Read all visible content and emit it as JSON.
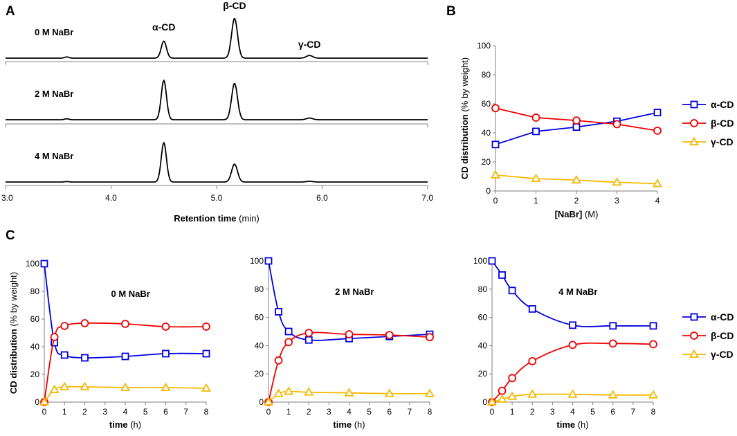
{
  "panels": {
    "A": "A",
    "B": "B",
    "C": "C"
  },
  "colors": {
    "alpha": "#0000dd",
    "beta": "#ee0000",
    "gamma": "#f5b800",
    "axis": "#7f7f7f",
    "trace": "#000000"
  },
  "legend": [
    "α-CD",
    "β-CD",
    "γ-CD"
  ],
  "chart_data": [
    {
      "id": "A",
      "type": "line",
      "title": "",
      "xlabel_bold": "Retention time",
      "xlabel_unit": "(min)",
      "ylabel": "",
      "xlim": [
        3.0,
        7.0
      ],
      "x_ticks": [
        "3.0",
        "4.0",
        "5.0",
        "6.0",
        "7.0"
      ],
      "peak_labels": [
        {
          "text": "α-CD",
          "x": 4.5
        },
        {
          "text": "β-CD",
          "x": 5.17
        },
        {
          "text": "γ-CD",
          "x": 5.88
        }
      ],
      "traces": [
        {
          "name": "0 M NaBr",
          "peaks": [
            {
              "x": 3.58,
              "h": 0.025
            },
            {
              "x": 4.5,
              "h": 0.35
            },
            {
              "x": 5.17,
              "h": 0.82
            },
            {
              "x": 5.88,
              "h": 0.055
            }
          ]
        },
        {
          "name": "2 M NaBr",
          "peaks": [
            {
              "x": 3.58,
              "h": 0.02
            },
            {
              "x": 4.5,
              "h": 0.81
            },
            {
              "x": 5.17,
              "h": 0.75
            },
            {
              "x": 5.88,
              "h": 0.035
            }
          ]
        },
        {
          "name": "4 M NaBr",
          "peaks": [
            {
              "x": 3.58,
              "h": 0.01
            },
            {
              "x": 4.5,
              "h": 0.81
            },
            {
              "x": 5.17,
              "h": 0.37
            },
            {
              "x": 5.88,
              "h": 0.015
            }
          ]
        }
      ]
    },
    {
      "id": "B",
      "type": "line",
      "title": "",
      "xlabel_bold": "[NaBr]",
      "xlabel_unit": "(M)",
      "ylabel": "CD distribution (% by weight)",
      "xlim": [
        0,
        4
      ],
      "ylim": [
        0,
        100
      ],
      "x_ticks": [
        "0",
        "1",
        "2",
        "3",
        "4"
      ],
      "y_ticks": [
        "0",
        "20",
        "40",
        "60",
        "80",
        "100"
      ],
      "x": [
        0,
        1,
        2,
        3,
        4
      ],
      "series": [
        {
          "name": "α-CD",
          "values": [
            32,
            41,
            44,
            48,
            54
          ]
        },
        {
          "name": "β-CD",
          "values": [
            57,
            50.5,
            48.5,
            46,
            41.5
          ]
        },
        {
          "name": "γ-CD",
          "values": [
            11,
            8.5,
            7.5,
            6,
            5
          ]
        }
      ]
    },
    {
      "id": "C1",
      "type": "line",
      "title": "0 M NaBr",
      "xlabel_bold": "time",
      "xlabel_unit": "(h)",
      "ylabel": "CD distribution (% by weight)",
      "xlim": [
        0,
        8
      ],
      "ylim": [
        0,
        100
      ],
      "x_ticks": [
        "0",
        "1",
        "2",
        "3",
        "4",
        "5",
        "6",
        "7",
        "8"
      ],
      "y_ticks": [
        "0",
        "20",
        "40",
        "60",
        "80",
        "100"
      ],
      "x": [
        0,
        0.5,
        1,
        2,
        4,
        6,
        8
      ],
      "series": [
        {
          "name": "α-CD",
          "values": [
            100,
            43,
            34,
            32,
            33,
            35,
            35
          ]
        },
        {
          "name": "β-CD",
          "values": [
            0,
            47,
            55,
            57,
            56.5,
            54.5,
            54.5
          ]
        },
        {
          "name": "γ-CD",
          "values": [
            0,
            9,
            11,
            11,
            10.5,
            10.5,
            10
          ]
        }
      ]
    },
    {
      "id": "C2",
      "type": "line",
      "title": "2 M NaBr",
      "xlabel_bold": "time",
      "xlabel_unit": "(h)",
      "ylabel": "",
      "xlim": [
        0,
        8
      ],
      "ylim": [
        0,
        100
      ],
      "x_ticks": [
        "0",
        "1",
        "2",
        "3",
        "4",
        "5",
        "6",
        "7",
        "8"
      ],
      "y_ticks": [
        "0",
        "20",
        "40",
        "60",
        "80",
        "100"
      ],
      "x": [
        0,
        0.5,
        1,
        2,
        4,
        6,
        8
      ],
      "series": [
        {
          "name": "α-CD",
          "values": [
            100,
            64,
            50,
            44,
            45,
            46.5,
            48
          ]
        },
        {
          "name": "β-CD",
          "values": [
            0,
            29.5,
            42.5,
            49,
            48,
            47.5,
            46
          ]
        },
        {
          "name": "γ-CD",
          "values": [
            0,
            6,
            7.5,
            7,
            6.5,
            6,
            6
          ]
        }
      ]
    },
    {
      "id": "C3",
      "type": "line",
      "title": "4 M NaBr",
      "xlabel_bold": "time",
      "xlabel_unit": "(h)",
      "ylabel": "",
      "xlim": [
        0,
        8
      ],
      "ylim": [
        0,
        100
      ],
      "x_ticks": [
        "0",
        "1",
        "2",
        "3",
        "4",
        "5",
        "6",
        "7",
        "8"
      ],
      "y_ticks": [
        "0",
        "20",
        "40",
        "60",
        "80",
        "100"
      ],
      "x": [
        0,
        0.5,
        1,
        2,
        4,
        6,
        8
      ],
      "series": [
        {
          "name": "α-CD",
          "values": [
            100,
            90,
            79,
            66,
            54.5,
            54,
            54
          ]
        },
        {
          "name": "β-CD",
          "values": [
            0,
            8,
            17,
            29,
            40.5,
            41.5,
            41
          ]
        },
        {
          "name": "γ-CD",
          "values": [
            0,
            2,
            4,
            5.5,
            5.5,
            5,
            5
          ]
        }
      ]
    }
  ]
}
